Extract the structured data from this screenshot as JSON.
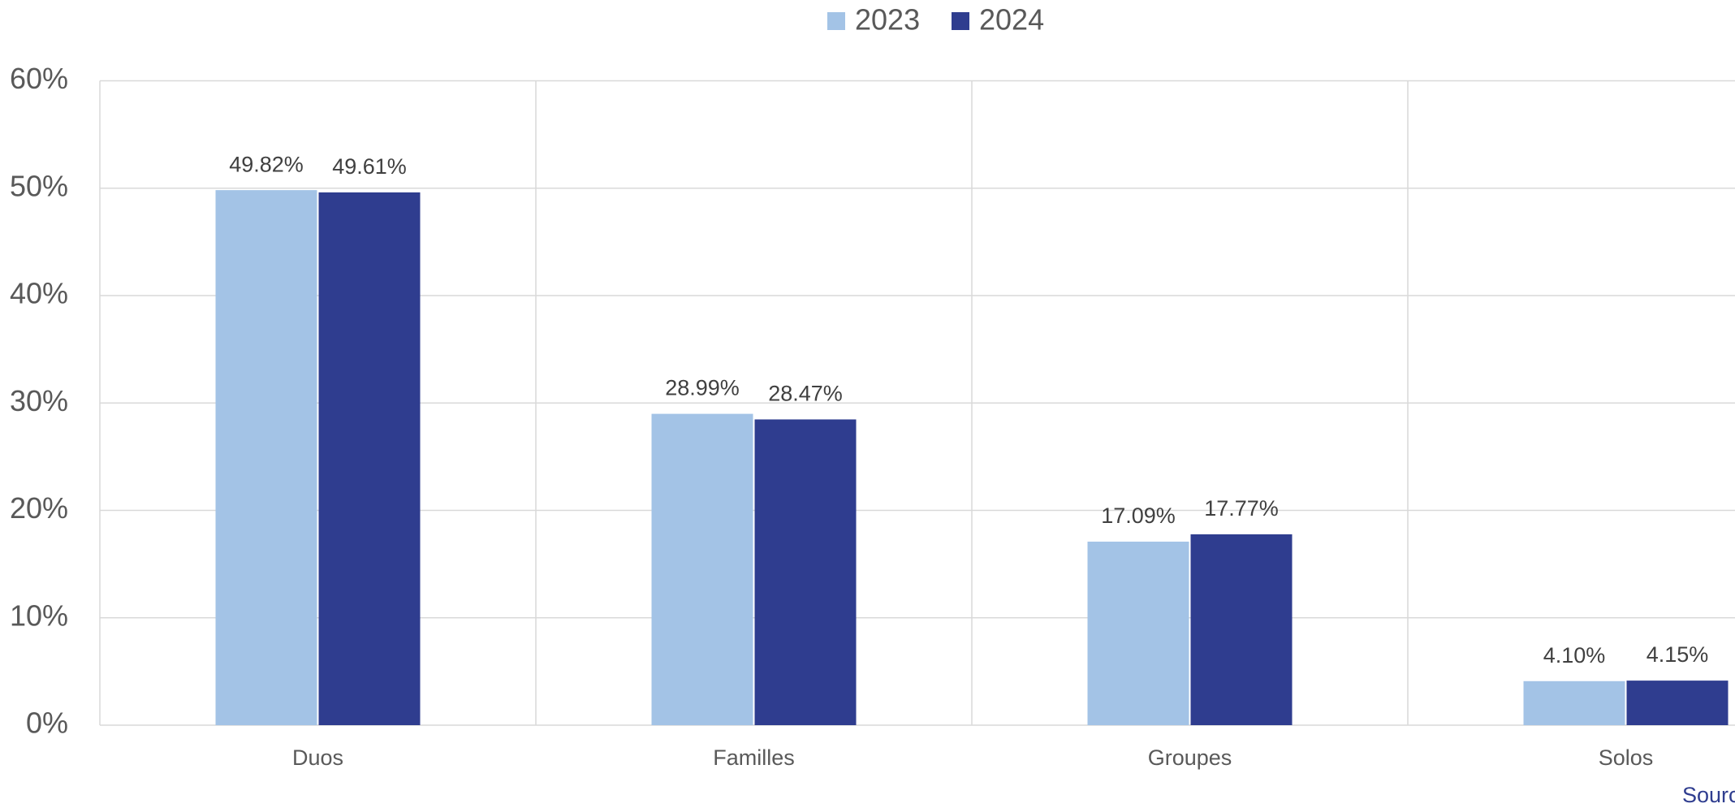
{
  "chart_data": {
    "type": "bar",
    "categories": [
      "Duos",
      "Familles",
      "Groupes",
      "Solos"
    ],
    "series": [
      {
        "name": "2023",
        "color": "#a3c3e6",
        "values": [
          49.82,
          28.99,
          17.09,
          4.1
        ],
        "value_labels": [
          "49.82%",
          "28.99%",
          "17.09%",
          "4.10%"
        ]
      },
      {
        "name": "2024",
        "color": "#2f3d8f",
        "values": [
          49.61,
          28.47,
          17.77,
          4.15
        ],
        "value_labels": [
          "49.61%",
          "28.47%",
          "17.77%",
          "4.15%"
        ]
      }
    ],
    "ylim": [
      0,
      60
    ],
    "yticks": [
      {
        "value": 0,
        "label": "0%"
      },
      {
        "value": 10,
        "label": "10%"
      },
      {
        "value": 20,
        "label": "20%"
      },
      {
        "value": 30,
        "label": "30%"
      },
      {
        "value": 40,
        "label": "40%"
      },
      {
        "value": 50,
        "label": "50%"
      },
      {
        "value": 60,
        "label": "60%"
      }
    ],
    "grid": true,
    "legend": "top",
    "source": "Sourc"
  }
}
